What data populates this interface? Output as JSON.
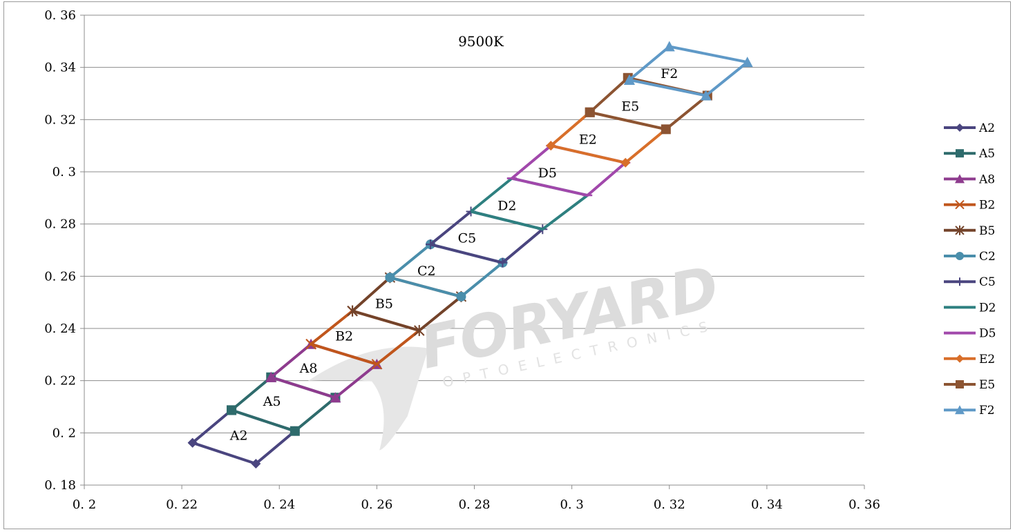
{
  "chart_data": {
    "type": "line",
    "title": "9500K",
    "xlabel": "",
    "ylabel": "",
    "xlim": [
      0.2,
      0.36
    ],
    "ylim": [
      0.18,
      0.36
    ],
    "x_ticks": [
      "0. 2",
      "0. 22",
      "0. 24",
      "0. 26",
      "0. 28",
      "0. 3",
      "0. 32",
      "0. 34",
      "0. 36"
    ],
    "y_ticks": [
      "0. 18",
      "0. 2",
      "0. 22",
      "0. 24",
      "0. 26",
      "0. 28",
      "0. 3",
      "0. 32",
      "0. 34",
      "0. 36"
    ],
    "grid": "horizontal",
    "legend_position": "right",
    "watermark": {
      "main": "FORYARD",
      "sub": "OPTOELECTRONICS"
    },
    "series": [
      {
        "name": "A2",
        "color": "#4a457f",
        "marker": "diamond",
        "label_pos": [
          0.2317,
          0.1992
        ],
        "points": [
          [
            0.2222,
            0.1962
          ],
          [
            0.2352,
            0.1882
          ],
          [
            0.2432,
            0.2007
          ],
          [
            0.2302,
            0.2087
          ],
          [
            0.2222,
            0.1962
          ]
        ]
      },
      {
        "name": "A5",
        "color": "#2e6b6c",
        "marker": "square",
        "label_pos": [
          0.2385,
          0.2123
        ],
        "points": [
          [
            0.2302,
            0.2087
          ],
          [
            0.2432,
            0.2007
          ],
          [
            0.2515,
            0.2135
          ],
          [
            0.2383,
            0.2213
          ],
          [
            0.2302,
            0.2087
          ]
        ]
      },
      {
        "name": "A8",
        "color": "#8e3b8e",
        "marker": "triangle",
        "label_pos": [
          0.246,
          0.225
        ],
        "points": [
          [
            0.2383,
            0.2213
          ],
          [
            0.2515,
            0.2135
          ],
          [
            0.26,
            0.2263
          ],
          [
            0.2465,
            0.234
          ],
          [
            0.2383,
            0.2213
          ]
        ]
      },
      {
        "name": "B2",
        "color": "#c0561c",
        "marker": "x",
        "label_pos": [
          0.2533,
          0.2372
        ],
        "points": [
          [
            0.2465,
            0.234
          ],
          [
            0.26,
            0.2263
          ],
          [
            0.2687,
            0.2392
          ],
          [
            0.255,
            0.2467
          ],
          [
            0.2465,
            0.234
          ]
        ]
      },
      {
        "name": "B5",
        "color": "#73432a",
        "marker": "star",
        "label_pos": [
          0.2615,
          0.2497
        ],
        "points": [
          [
            0.255,
            0.2467
          ],
          [
            0.2687,
            0.2392
          ],
          [
            0.2773,
            0.2522
          ],
          [
            0.2627,
            0.2595
          ],
          [
            0.255,
            0.2467
          ]
        ]
      },
      {
        "name": "C2",
        "color": "#4a8eab",
        "marker": "circle",
        "label_pos": [
          0.2702,
          0.2622
        ],
        "points": [
          [
            0.2627,
            0.2595
          ],
          [
            0.2773,
            0.2522
          ],
          [
            0.2858,
            0.2652
          ],
          [
            0.271,
            0.2722
          ],
          [
            0.2627,
            0.2595
          ]
        ]
      },
      {
        "name": "C5",
        "color": "#4a457f",
        "marker": "plus",
        "label_pos": [
          0.2785,
          0.2747
        ],
        "points": [
          [
            0.271,
            0.2722
          ],
          [
            0.2858,
            0.2652
          ],
          [
            0.294,
            0.278
          ],
          [
            0.2793,
            0.2848
          ],
          [
            0.271,
            0.2722
          ]
        ]
      },
      {
        "name": "D2",
        "color": "#2e8080",
        "marker": "none",
        "label_pos": [
          0.2867,
          0.2872
        ],
        "points": [
          [
            0.2793,
            0.2848
          ],
          [
            0.294,
            0.278
          ],
          [
            0.3032,
            0.291
          ],
          [
            0.2877,
            0.2975
          ],
          [
            0.2793,
            0.2848
          ]
        ]
      },
      {
        "name": "D5",
        "color": "#a148ab",
        "marker": "dash",
        "label_pos": [
          0.295,
          0.2998
        ],
        "points": [
          [
            0.2877,
            0.2975
          ],
          [
            0.3032,
            0.291
          ],
          [
            0.311,
            0.3035
          ],
          [
            0.2957,
            0.31
          ],
          [
            0.2877,
            0.2975
          ]
        ]
      },
      {
        "name": "E2",
        "color": "#d86f2a",
        "marker": "diamond",
        "label_pos": [
          0.3033,
          0.3125
        ],
        "points": [
          [
            0.2957,
            0.31
          ],
          [
            0.311,
            0.3035
          ],
          [
            0.3193,
            0.3163
          ],
          [
            0.3037,
            0.3228
          ],
          [
            0.2957,
            0.31
          ]
        ]
      },
      {
        "name": "E5",
        "color": "#8c5432",
        "marker": "square",
        "label_pos": [
          0.312,
          0.3253
        ],
        "points": [
          [
            0.3037,
            0.3228
          ],
          [
            0.3193,
            0.3163
          ],
          [
            0.3278,
            0.3292
          ],
          [
            0.3115,
            0.336
          ],
          [
            0.3037,
            0.3228
          ]
        ]
      },
      {
        "name": "F2",
        "color": "#5f99c7",
        "marker": "triangle",
        "label_pos": [
          0.32,
          0.3378
        ],
        "points": [
          [
            0.3118,
            0.3352
          ],
          [
            0.32,
            0.348
          ],
          [
            0.336,
            0.342
          ],
          [
            0.3275,
            0.3292
          ],
          [
            0.3118,
            0.3352
          ]
        ]
      }
    ]
  }
}
